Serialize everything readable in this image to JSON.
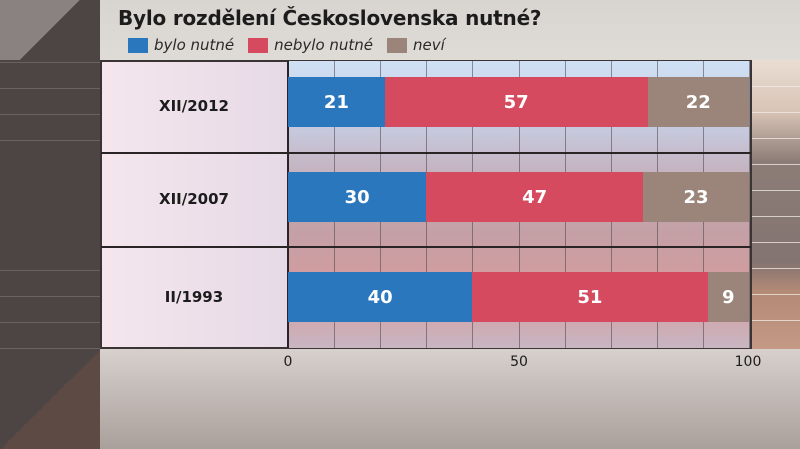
{
  "title": "Bylo rozdělení Československa nutné?",
  "legend": [
    {
      "label": "bylo nutné",
      "color": "#2a77bd"
    },
    {
      "label": "nebylo nutné",
      "color": "#d54a5e"
    },
    {
      "label": "neví",
      "color": "#9b857a"
    }
  ],
  "rows": [
    {
      "label": "XII/2012"
    },
    {
      "label": "XII/2007"
    },
    {
      "label": "II/1993"
    }
  ],
  "axis": {
    "ticks": [
      "0",
      "50",
      "100"
    ]
  },
  "chart_data": {
    "type": "bar",
    "orientation": "horizontal",
    "stacked": true,
    "title": "Bylo rozdělení Československa nutné?",
    "categories": [
      "XII/2012",
      "XII/2007",
      "II/1993"
    ],
    "series": [
      {
        "name": "bylo nutné",
        "color": "#2a77bd",
        "values": [
          21,
          30,
          40
        ]
      },
      {
        "name": "nebylo nutné",
        "color": "#d54a5e",
        "values": [
          57,
          47,
          51
        ]
      },
      {
        "name": "neví",
        "color": "#9b857a",
        "values": [
          22,
          23,
          9
        ]
      }
    ],
    "xlabel": "",
    "ylabel": "",
    "xlim": [
      0,
      100
    ],
    "x_ticks": [
      0,
      50,
      100
    ],
    "grid": {
      "vertical_every": 10
    },
    "legend_position": "top"
  }
}
